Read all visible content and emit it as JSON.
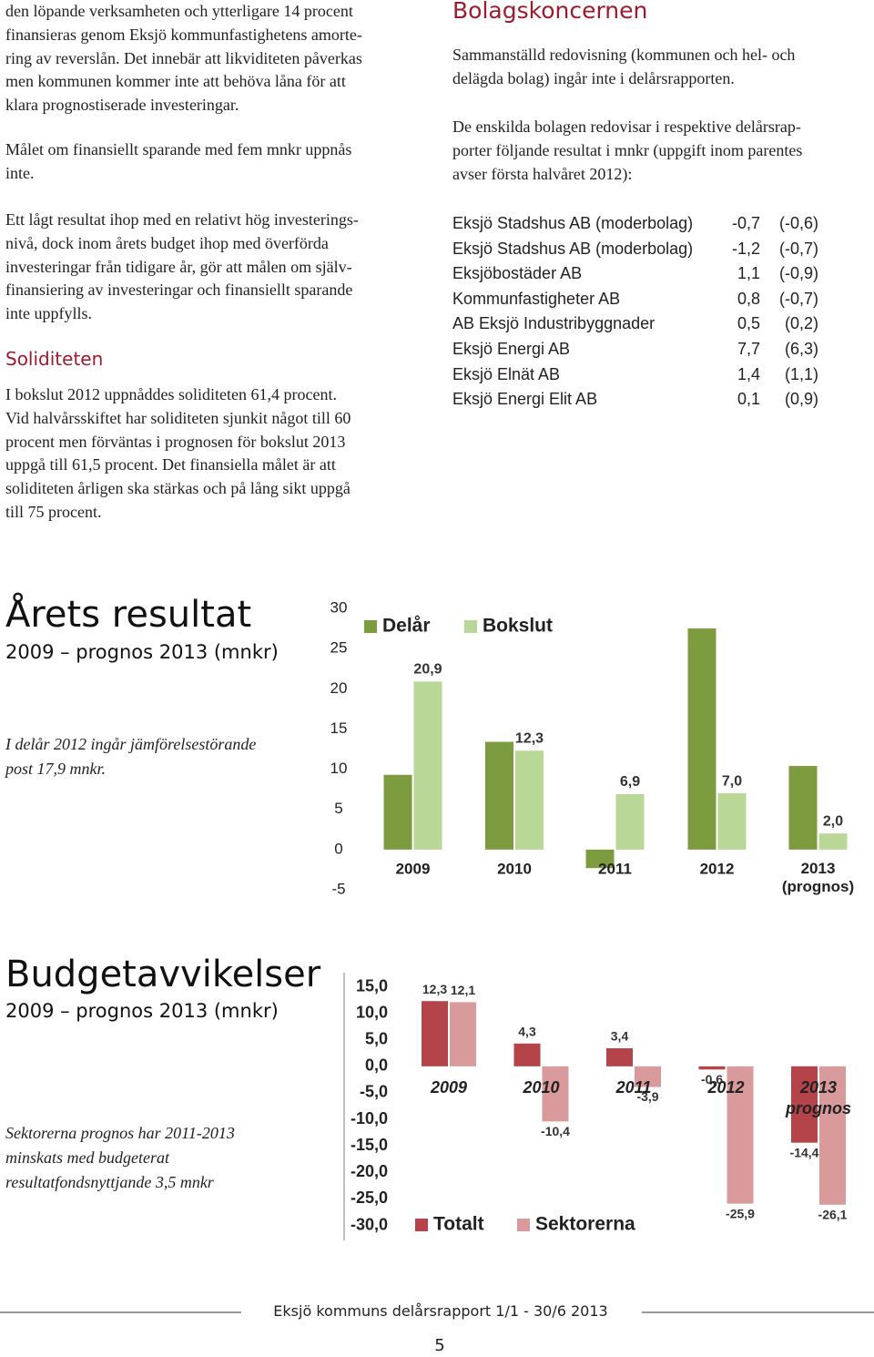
{
  "left_column": [
    {
      "lines": [
        "den löpande verksamheten och ytterligare 14 procent",
        "finansieras genom Eksjö kommunfastighetens amorte-",
        "ring av reverslån. Det innebär att likviditeten påverkas",
        "men kommunen kommer inte att behöva låna för att",
        "klara prognostiserade investeringar."
      ]
    },
    {
      "lines": [
        "Målet om finansiellt sparande med fem mnkr uppnås",
        "inte."
      ]
    },
    {
      "lines": [
        "Ett lågt resultat ihop med en relativt hög investerings-",
        "nivå, dock inom årets budget ihop med överförda",
        "investeringar från tidigare år, gör att målen om själv-",
        "finansiering av investeringar och finansiellt sparande",
        "inte uppfylls."
      ]
    },
    {
      "heading": "Soliditeten"
    },
    {
      "lines": [
        "I bokslut 2012 uppnåddes soliditeten 61,4 procent.",
        "Vid halvårsskiftet har soliditeten sjunkit något till 60",
        "procent men förväntas i prognosen för bokslut 2013",
        "uppgå till 61,5 procent. Det finansiella målet är att",
        "soliditeten årligen ska stärkas och på lång sikt uppgå",
        "till 75 procent."
      ]
    }
  ],
  "right_column": [
    {
      "heading": "Bolagskoncernen"
    },
    {
      "lines": [
        "Sammanställd redovisning (kommunen och hel- och",
        "delägda bolag) ingår inte i delårsrapporten."
      ]
    },
    {
      "lines": [
        "De enskilda bolagen redovisar i respektive delårsrap-",
        "porter följande resultat i mnkr (uppgift inom parentes",
        "avser första halvåret 2012):"
      ]
    }
  ],
  "table": {
    "rows": [
      [
        "Eksjö Stadshus AB (moderbolag)",
        "-0,7",
        "(-0,6)"
      ],
      [
        "Eksjö Stadshus AB (moderbolag)",
        "-1,2",
        "(-0,7)"
      ],
      [
        "Eksjöbostäder AB",
        "1,1",
        "(-0,9)"
      ],
      [
        "Kommunfastigheter AB",
        "0,8",
        "(-0,7)"
      ],
      [
        "AB Eksjö Industribyggnader",
        "0,5",
        "(0,2)"
      ],
      [
        "Eksjö Energi AB",
        "7,7",
        "(6,3)"
      ],
      [
        "Eksjö Elnät AB",
        "1,4",
        "(1,1)"
      ],
      [
        "Eksjö Energi Elit AB",
        "0,1",
        "(0,9)"
      ]
    ]
  },
  "chart_data": [
    {
      "type": "bar",
      "title": "Årets resultat",
      "subtitle": "2009 – prognos 2013 (mnkr)",
      "note": [
        "I delår 2012 ingår jämförelsestörande",
        "post 17,9 mnkr."
      ],
      "categories": [
        "2009",
        "2010",
        "2011",
        "2012",
        "2013 (prognos)"
      ],
      "series": [
        {
          "name": "Delår",
          "color": "#7d9c3f",
          "values": [
            9.3,
            13.4,
            -2.3,
            27.5,
            10.4
          ]
        },
        {
          "name": "Bokslut",
          "color": "#b9d796",
          "values": [
            20.9,
            12.3,
            6.9,
            7.0,
            2.0
          ],
          "value_labels": [
            "20,9",
            "12,3",
            "6,9",
            "7,0",
            "2,0"
          ]
        }
      ],
      "ylim": [
        -5,
        30
      ],
      "yticks": [
        -5,
        0,
        5,
        10,
        15,
        20,
        25,
        30
      ],
      "grid": false
    },
    {
      "type": "bar",
      "title": "Budgetavvikelser",
      "subtitle": "2009 – prognos 2013 (mnkr)",
      "note": [
        "Sektorerna prognos har 2011-2013",
        "minskats med budgeterat",
        "resultatfondsnyttjande 3,5 mnkr"
      ],
      "categories": [
        "2009",
        "2010",
        "2011",
        "2012",
        "2013 prognos"
      ],
      "series": [
        {
          "name": "Totalt",
          "color": "#b5434a",
          "values": [
            12.3,
            4.3,
            3.4,
            -0.6,
            -14.4
          ],
          "value_labels": [
            "12,3",
            "4,3",
            "3,4",
            "-0,6",
            "-14,4"
          ]
        },
        {
          "name": "Sektorerna",
          "color": "#d99a9c",
          "values": [
            12.1,
            -10.4,
            -3.9,
            -25.9,
            -26.1
          ],
          "value_labels": [
            "12,1",
            "-10,4",
            "-3,9",
            "-25,9",
            "-26,1"
          ]
        }
      ],
      "ylim": [
        -30,
        15
      ],
      "yticks": [
        {
          "value": -30,
          "label": "-30,0"
        },
        {
          "value": -25,
          "label": "-25,0"
        },
        {
          "value": -20,
          "label": "-20,0"
        },
        {
          "value": -15,
          "label": "-15,0"
        },
        {
          "value": -10,
          "label": "-10,0"
        },
        {
          "value": -5,
          "label": "-5,0"
        },
        {
          "value": 0,
          "label": "0,0"
        },
        {
          "value": 5,
          "label": "5,0"
        },
        {
          "value": 10,
          "label": "10,0"
        },
        {
          "value": 15,
          "label": "15,0"
        }
      ],
      "grid": false
    }
  ],
  "footer": {
    "text": "Eksjö kommuns delårsrapport 1/1 - 30/6 2013",
    "page": "5"
  }
}
